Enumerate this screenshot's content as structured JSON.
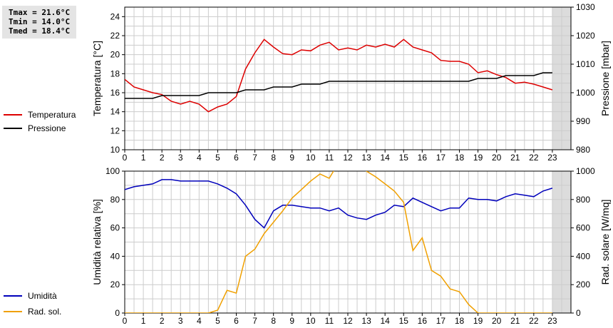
{
  "stats": {
    "tmax": "Tmax = 21.6°C",
    "tmin": "Tmin = 14.0°C",
    "tmed": "Tmed = 18.4°C"
  },
  "colors": {
    "temperature": "#dd0000",
    "pressure": "#000000",
    "humidity": "#0000bb",
    "solar": "#f0a000",
    "grid": "#cccccc",
    "shade": "#dcdcdc"
  },
  "chart_data": [
    {
      "type": "line",
      "x_ticks": [
        "0",
        "1",
        "2",
        "3",
        "4",
        "5",
        "6",
        "7",
        "8",
        "9",
        "10",
        "11",
        "12",
        "13",
        "14",
        "15",
        "16",
        "17",
        "18",
        "19",
        "20",
        "21",
        "22",
        "23"
      ],
      "xlim": [
        0,
        24
      ],
      "shaded_from_hour": 23,
      "grid": true,
      "legend": "left",
      "left_axis": {
        "label": "Temperatura [°C]",
        "lim": [
          10,
          25
        ],
        "ticks": [
          "10",
          "12",
          "14",
          "16",
          "18",
          "20",
          "22",
          "24"
        ]
      },
      "right_axis": {
        "label": "Pressione [mbar]",
        "lim": [
          980,
          1030
        ],
        "ticks": [
          "980",
          "990",
          "1000",
          "1010",
          "1020",
          "1030"
        ]
      },
      "series": [
        {
          "name": "Temperatura",
          "axis": "left",
          "color": "#dd0000",
          "x": [
            0,
            0.5,
            1,
            1.5,
            2,
            2.5,
            3,
            3.5,
            4,
            4.5,
            5,
            5.5,
            6,
            6.5,
            7,
            7.5,
            8,
            8.5,
            9,
            9.5,
            10,
            10.5,
            11,
            11.5,
            12,
            12.5,
            13,
            13.5,
            14,
            14.5,
            15,
            15.5,
            16,
            16.5,
            17,
            17.5,
            18,
            18.5,
            19,
            19.5,
            20,
            20.5,
            21,
            21.5,
            22,
            22.5,
            23
          ],
          "y": [
            17.4,
            16.6,
            16.3,
            16.0,
            15.8,
            15.1,
            14.8,
            15.1,
            14.8,
            14.0,
            14.5,
            14.8,
            15.6,
            18.5,
            20.2,
            21.6,
            20.8,
            20.1,
            20.0,
            20.5,
            20.4,
            21.0,
            21.3,
            20.5,
            20.7,
            20.5,
            21.0,
            20.8,
            21.1,
            20.8,
            21.6,
            20.8,
            20.5,
            20.2,
            19.4,
            19.3,
            19.3,
            19.0,
            18.1,
            18.3,
            17.9,
            17.6,
            17.0,
            17.1,
            16.9,
            16.6,
            16.3
          ]
        },
        {
          "name": "Pressione",
          "axis": "right",
          "color": "#000000",
          "x": [
            0,
            1,
            1.5,
            2,
            2.5,
            3,
            3.5,
            4,
            4.5,
            5,
            6,
            6.5,
            7,
            7.5,
            8,
            8.5,
            9,
            9.5,
            10,
            10.5,
            11,
            12,
            13,
            14,
            15,
            16,
            17,
            18,
            18.5,
            19,
            19.5,
            20,
            20.5,
            21,
            21.5,
            22,
            22.5,
            23
          ],
          "y": [
            998,
            998,
            998,
            999,
            999,
            999,
            999,
            999,
            1000,
            1000,
            1000,
            1001,
            1001,
            1001,
            1002,
            1002,
            1002,
            1003,
            1003,
            1003,
            1004,
            1004,
            1004,
            1004,
            1004,
            1004,
            1004,
            1004,
            1004,
            1005,
            1005,
            1005,
            1006,
            1006,
            1006,
            1006,
            1007,
            1007
          ]
        }
      ]
    },
    {
      "type": "line",
      "x_ticks": [
        "0",
        "1",
        "2",
        "3",
        "4",
        "5",
        "6",
        "7",
        "8",
        "9",
        "10",
        "11",
        "12",
        "13",
        "14",
        "15",
        "16",
        "17",
        "18",
        "19",
        "20",
        "21",
        "22",
        "23"
      ],
      "xlim": [
        0,
        24
      ],
      "shaded_from_hour": 23,
      "grid": true,
      "legend": "left",
      "left_axis": {
        "label": "Umidità relativa [%]",
        "lim": [
          0,
          100
        ],
        "ticks": [
          "0",
          "20",
          "40",
          "60",
          "80",
          "100"
        ]
      },
      "right_axis": {
        "label": "Rad. solare [W/mq]",
        "lim": [
          0,
          1000
        ],
        "ticks": [
          "0",
          "200",
          "400",
          "600",
          "800",
          "1000"
        ]
      },
      "series": [
        {
          "name": "Umidità",
          "axis": "left",
          "color": "#0000bb",
          "x": [
            0,
            0.5,
            1,
            1.5,
            2,
            2.5,
            3,
            3.5,
            4,
            4.5,
            5,
            5.5,
            6,
            6.5,
            7,
            7.5,
            8,
            8.5,
            9,
            9.5,
            10,
            10.5,
            11,
            11.5,
            12,
            12.5,
            13,
            13.5,
            14,
            14.5,
            15,
            15.5,
            16,
            16.5,
            17,
            17.5,
            18,
            18.5,
            19,
            19.5,
            20,
            20.5,
            21,
            21.5,
            22,
            22.5,
            23
          ],
          "y": [
            87,
            89,
            90,
            91,
            94,
            94,
            93,
            93,
            93,
            93,
            91,
            88,
            84,
            76,
            66,
            60,
            72,
            76,
            76,
            75,
            74,
            74,
            72,
            74,
            69,
            67,
            66,
            69,
            71,
            76,
            75,
            81,
            78,
            75,
            72,
            74,
            74,
            81,
            80,
            80,
            79,
            82,
            84,
            83,
            82,
            86,
            88
          ]
        },
        {
          "name": "Rad. sol.",
          "axis": "right",
          "color": "#f0a000",
          "x": [
            0,
            0.5,
            1,
            1.5,
            2,
            2.5,
            3,
            3.5,
            4,
            4.5,
            5,
            5.5,
            6,
            6.5,
            7,
            7.5,
            8,
            8.5,
            9,
            9.5,
            10,
            10.5,
            11,
            11.5,
            12,
            12.5,
            13,
            13.5,
            14,
            14.5,
            15,
            15.5,
            16,
            16.5,
            17,
            17.5,
            18,
            18.5,
            19,
            19.5,
            20,
            20.5,
            21,
            21.5,
            22,
            22.5,
            23
          ],
          "y": [
            0,
            0,
            0,
            0,
            0,
            0,
            0,
            0,
            0,
            0,
            20,
            160,
            140,
            400,
            450,
            560,
            640,
            720,
            810,
            870,
            930,
            980,
            950,
            1060,
            1100,
            1080,
            1000,
            960,
            910,
            860,
            780,
            440,
            530,
            300,
            260,
            170,
            150,
            60,
            0,
            0,
            0,
            0,
            0,
            0,
            0,
            0,
            0
          ]
        }
      ]
    }
  ]
}
